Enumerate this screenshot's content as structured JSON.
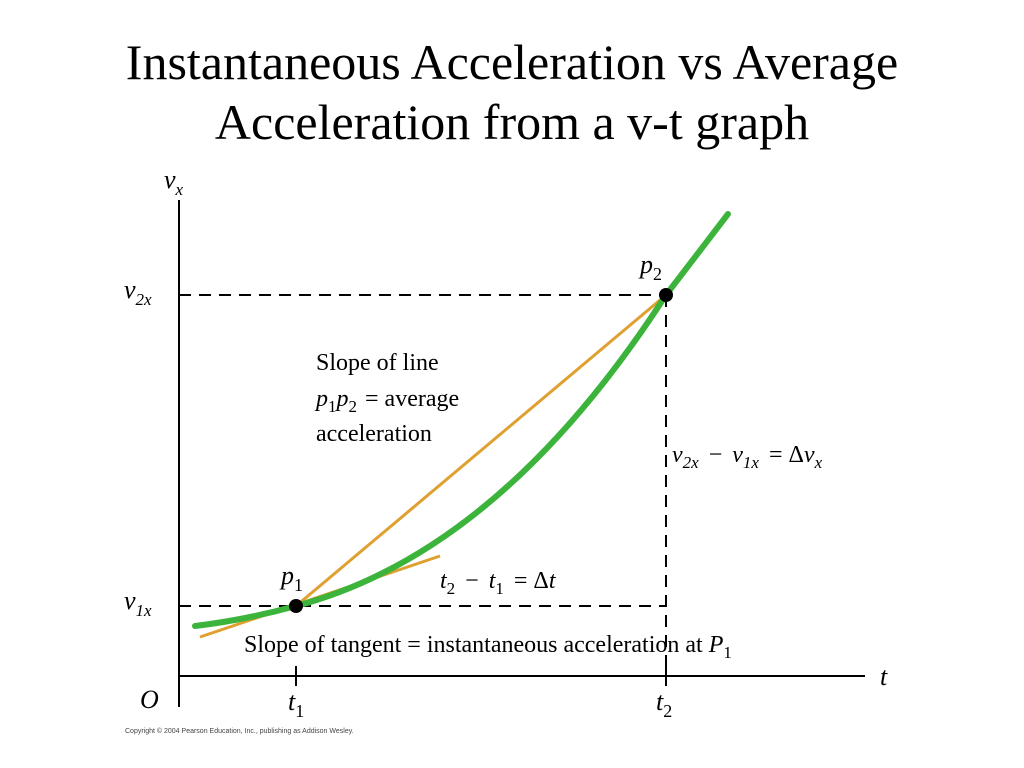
{
  "slide": {
    "title_line1": "Instantaneous Acceleration vs Average",
    "title_line2": "Acceleration from a v-t graph",
    "copyright": "Copyright © 2004 Pearson Education, Inc., publishing as Addison Wesley."
  },
  "axes": {
    "y_axis": {
      "symbol": "v",
      "subscript": "x"
    },
    "x_axis": {
      "symbol": "t"
    },
    "origin": "O"
  },
  "points": {
    "p1": {
      "symbol": "p",
      "subscript": "1",
      "t_label": "t",
      "t_sub": "1",
      "v_label": "v",
      "v_sub": "1x"
    },
    "p2": {
      "symbol": "p",
      "subscript": "2",
      "t_label": "t",
      "t_sub": "2",
      "v_label": "v",
      "v_sub": "2x"
    }
  },
  "annotations": {
    "avg_line1": "Slope of line",
    "avg_line2_eq": "= average",
    "avg_line3": "acceleration",
    "delta_v_minus": "−",
    "delta_v_eq": "= Δ",
    "delta_t_minus": "−",
    "delta_t_eq": "= Δ",
    "tangent_text": "Slope of tangent = instantaneous acceleration at"
  },
  "colors": {
    "curve": "#3cb43c",
    "chord": "#e0a030",
    "tangent": "#e0a030",
    "axes": "#000000"
  }
}
